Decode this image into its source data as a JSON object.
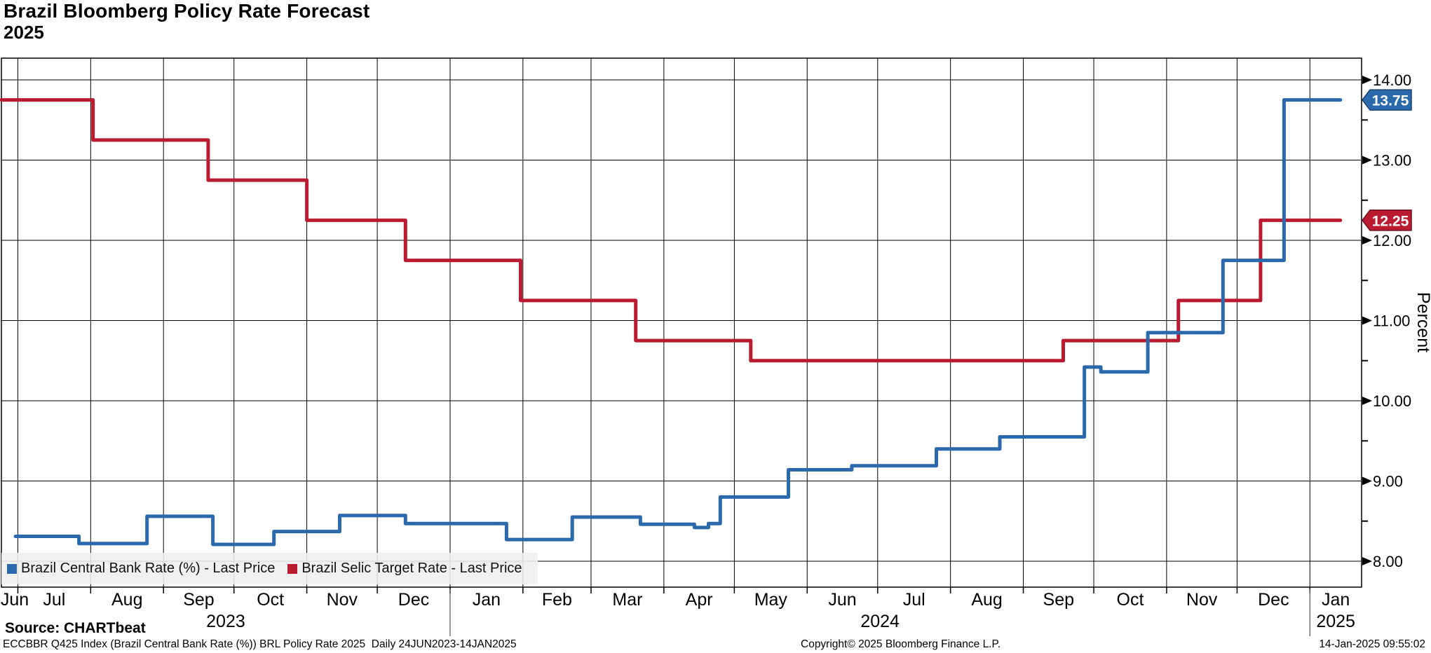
{
  "header": {
    "title": "Brazil Bloomberg Policy Rate Forecast",
    "subtitle": "2025"
  },
  "footer": {
    "source": "Source: CHARTbeat",
    "note": "ECCBBR Q425 Index (Brazil Central Bank Rate (%)) BRL Policy Rate 2025  Daily 24JUN2023-14JAN2025",
    "copyright": "Copyright© 2025 Bloomberg Finance L.P.",
    "timestamp": "14-Jan-2025 09:55:02"
  },
  "colors": {
    "blue": "#2a69ac",
    "blue_dark": "#17436f",
    "red": "#bb1b31",
    "red_dark": "#6e0e1d",
    "grid": "#000000",
    "legend_bg": "#efefef"
  },
  "legend": {
    "items": [
      {
        "label": "Brazil Central Bank Rate (%) - Last Price",
        "color_key": "blue"
      },
      {
        "label": "Brazil Selic Target Rate - Last Price",
        "color_key": "red"
      }
    ]
  },
  "y_axis": {
    "label": "Percent",
    "ticks": [
      {
        "value": 14,
        "label": "14.00"
      },
      {
        "value": 13,
        "label": "13.00"
      },
      {
        "value": 12,
        "label": "12.00"
      },
      {
        "value": 11,
        "label": "11.00"
      },
      {
        "value": 10,
        "label": "10.00"
      },
      {
        "value": 9,
        "label": "9.00"
      },
      {
        "value": 8,
        "label": "8.00"
      }
    ],
    "minor_tick_values": [
      13.5,
      12.5,
      11.5,
      10.5,
      9.5,
      8.5
    ]
  },
  "x_axis": {
    "start": "2023-06-24",
    "data_end": "2025-01-14",
    "axis_end": "2025-01-23",
    "month_labels": [
      "Jun",
      "Jul",
      "Aug",
      "Sep",
      "Oct",
      "Nov",
      "Dec",
      "Jan",
      "Feb",
      "Mar",
      "Apr",
      "May",
      "Jun",
      "Jul",
      "Aug",
      "Sep",
      "Oct",
      "Nov",
      "Dec",
      "Jan"
    ],
    "year_labels": [
      {
        "label": "2023",
        "from": "2023-06-24",
        "to": "2024-01-01"
      },
      {
        "label": "2024",
        "from": "2024-01-01",
        "to": "2025-01-01"
      },
      {
        "label": "2025",
        "from": "2025-01-01",
        "to": "2025-01-23"
      }
    ]
  },
  "badges": [
    {
      "label": "13.75",
      "color_key": "blue"
    },
    {
      "label": "12.25",
      "color_key": "red"
    }
  ],
  "chart_data": {
    "type": "line",
    "step_mode": "after",
    "title": "Brazil Bloomberg Policy Rate Forecast 2025",
    "xlabel": "",
    "ylabel": "Percent",
    "ylim": [
      7.675,
      14.27
    ],
    "x_range": [
      "2023-06-24",
      "2025-01-14"
    ],
    "grid": true,
    "legend_position": "bottom-left",
    "series": [
      {
        "name": "Brazil Central Bank Rate (%) - Last Price",
        "color_key": "blue",
        "points": [
          [
            "2023-06-30",
            8.31
          ],
          [
            "2023-07-27",
            8.22
          ],
          [
            "2023-08-25",
            8.56
          ],
          [
            "2023-09-22",
            8.21
          ],
          [
            "2023-10-18",
            8.37
          ],
          [
            "2023-11-15",
            8.57
          ],
          [
            "2023-12-13",
            8.47
          ],
          [
            "2024-01-25",
            8.27
          ],
          [
            "2024-02-22",
            8.55
          ],
          [
            "2024-03-22",
            8.46
          ],
          [
            "2024-04-14",
            8.42
          ],
          [
            "2024-04-20",
            8.47
          ],
          [
            "2024-04-25",
            8.8
          ],
          [
            "2024-05-24",
            9.14
          ],
          [
            "2024-06-20",
            9.19
          ],
          [
            "2024-07-26",
            9.4
          ],
          [
            "2024-08-22",
            9.55
          ],
          [
            "2024-09-27",
            10.42
          ],
          [
            "2024-10-04",
            10.36
          ],
          [
            "2024-10-24",
            10.85
          ],
          [
            "2024-11-25",
            11.75
          ],
          [
            "2024-12-21",
            13.75
          ]
        ]
      },
      {
        "name": "Brazil Selic Target Rate - Last Price",
        "color_key": "red",
        "points": [
          [
            "2023-06-24",
            13.75
          ],
          [
            "2023-08-02",
            13.25
          ],
          [
            "2023-09-20",
            12.75
          ],
          [
            "2023-11-01",
            12.25
          ],
          [
            "2023-12-13",
            11.75
          ],
          [
            "2024-01-31",
            11.25
          ],
          [
            "2024-03-20",
            10.75
          ],
          [
            "2024-05-08",
            10.5
          ],
          [
            "2024-09-18",
            10.75
          ],
          [
            "2024-11-06",
            11.25
          ],
          [
            "2024-12-11",
            12.25
          ]
        ]
      }
    ]
  }
}
